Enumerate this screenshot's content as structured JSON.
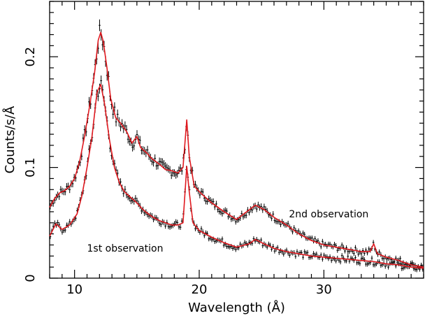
{
  "chart_data": {
    "type": "line",
    "title": "",
    "xlabel": "Wavelength (Å)",
    "ylabel": "Counts/s/Å",
    "xlim": [
      8,
      38
    ],
    "ylim": [
      0,
      0.25
    ],
    "x_ticks": [
      10,
      20,
      30
    ],
    "x_tick_labels": [
      "10",
      "20",
      "30"
    ],
    "y_ticks": [
      0,
      0.1,
      0.2
    ],
    "y_tick_labels": [
      "0",
      "0.1",
      "0.2"
    ],
    "grid": false,
    "legend": "none",
    "annotations": [
      {
        "text": "2nd observation",
        "x": 27.2,
        "y": 0.055
      },
      {
        "text": "1st observation",
        "x": 11.0,
        "y": 0.024
      }
    ],
    "series": [
      {
        "points": [
          [
            8.0,
            0.064
          ],
          [
            8.4,
            0.072
          ],
          [
            8.8,
            0.077
          ],
          [
            9.2,
            0.079
          ],
          [
            9.6,
            0.083
          ],
          [
            10.0,
            0.09
          ],
          [
            10.4,
            0.105
          ],
          [
            10.8,
            0.128
          ],
          [
            11.2,
            0.155
          ],
          [
            11.6,
            0.185
          ],
          [
            11.9,
            0.215
          ],
          [
            12.1,
            0.222
          ],
          [
            12.3,
            0.214
          ],
          [
            12.6,
            0.19
          ],
          [
            12.9,
            0.162
          ],
          [
            13.3,
            0.145
          ],
          [
            13.7,
            0.14
          ],
          [
            14.2,
            0.132
          ],
          [
            14.6,
            0.122
          ],
          [
            15.0,
            0.128
          ],
          [
            15.3,
            0.118
          ],
          [
            15.8,
            0.113
          ],
          [
            16.2,
            0.108
          ],
          [
            16.8,
            0.103
          ],
          [
            17.3,
            0.098
          ],
          [
            17.8,
            0.097
          ],
          [
            18.3,
            0.095
          ],
          [
            18.7,
            0.1
          ],
          [
            19.0,
            0.143
          ],
          [
            19.2,
            0.11
          ],
          [
            19.6,
            0.083
          ],
          [
            20.2,
            0.076
          ],
          [
            21.0,
            0.068
          ],
          [
            22.0,
            0.06
          ],
          [
            23.0,
            0.053
          ],
          [
            23.8,
            0.06
          ],
          [
            24.5,
            0.066
          ],
          [
            25.2,
            0.062
          ],
          [
            26.0,
            0.055
          ],
          [
            27.0,
            0.048
          ],
          [
            28.0,
            0.04
          ],
          [
            29.0,
            0.034
          ],
          [
            30.0,
            0.03
          ],
          [
            31.0,
            0.028
          ],
          [
            32.0,
            0.026
          ],
          [
            33.0,
            0.024
          ],
          [
            33.7,
            0.024
          ],
          [
            34.0,
            0.031
          ],
          [
            34.3,
            0.022
          ],
          [
            35.0,
            0.019
          ],
          [
            36.0,
            0.016
          ],
          [
            37.0,
            0.012
          ],
          [
            38.0,
            0.01
          ]
        ]
      },
      {
        "points": [
          [
            8.0,
            0.038
          ],
          [
            8.5,
            0.049
          ],
          [
            9.0,
            0.044
          ],
          [
            9.6,
            0.048
          ],
          [
            10.2,
            0.058
          ],
          [
            10.6,
            0.075
          ],
          [
            11.0,
            0.1
          ],
          [
            11.4,
            0.128
          ],
          [
            11.8,
            0.168
          ],
          [
            12.1,
            0.175
          ],
          [
            12.4,
            0.158
          ],
          [
            12.8,
            0.125
          ],
          [
            13.2,
            0.1
          ],
          [
            13.6,
            0.086
          ],
          [
            14.0,
            0.078
          ],
          [
            14.5,
            0.073
          ],
          [
            15.0,
            0.068
          ],
          [
            15.4,
            0.063
          ],
          [
            15.8,
            0.059
          ],
          [
            16.3,
            0.055
          ],
          [
            16.8,
            0.052
          ],
          [
            17.3,
            0.05
          ],
          [
            17.8,
            0.048
          ],
          [
            18.3,
            0.048
          ],
          [
            18.7,
            0.05
          ],
          [
            19.0,
            0.101
          ],
          [
            19.2,
            0.078
          ],
          [
            19.5,
            0.05
          ],
          [
            20.0,
            0.043
          ],
          [
            21.0,
            0.037
          ],
          [
            22.0,
            0.032
          ],
          [
            23.0,
            0.028
          ],
          [
            24.0,
            0.031
          ],
          [
            24.5,
            0.035
          ],
          [
            25.2,
            0.031
          ],
          [
            26.0,
            0.027
          ],
          [
            27.0,
            0.024
          ],
          [
            28.0,
            0.022
          ],
          [
            29.0,
            0.02
          ],
          [
            30.0,
            0.019
          ],
          [
            31.0,
            0.018
          ],
          [
            32.0,
            0.017
          ],
          [
            33.0,
            0.016
          ],
          [
            34.0,
            0.015
          ],
          [
            35.0,
            0.013
          ],
          [
            36.0,
            0.012
          ],
          [
            37.0,
            0.01
          ],
          [
            38.0,
            0.009
          ]
        ]
      }
    ]
  },
  "colors": {
    "model_line": "#e0191f",
    "data_points": "#000000",
    "axes": "#000000",
    "background": "#ffffff"
  }
}
